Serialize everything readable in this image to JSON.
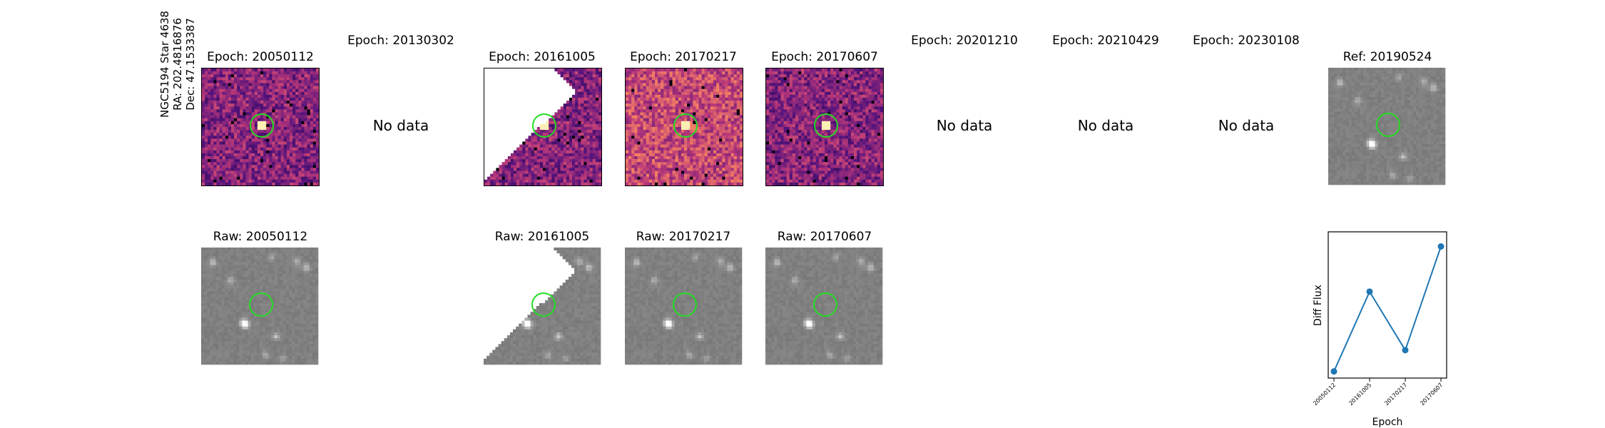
{
  "target": {
    "name": "NGC5194 Star 4638",
    "ra": "RA: 202.4816876",
    "dec": "Dec: 47.1533387"
  },
  "diff_row": [
    {
      "title": "Epoch: 20050112",
      "status": "data",
      "colormap": "magma"
    },
    {
      "title": "Epoch: 20130302",
      "status": "no-data",
      "text": "No data"
    },
    {
      "title": "Epoch: 20161005",
      "status": "data",
      "colormap": "magma"
    },
    {
      "title": "Epoch: 20170217",
      "status": "data",
      "colormap": "magma"
    },
    {
      "title": "Epoch: 20170607",
      "status": "data",
      "colormap": "magma"
    },
    {
      "title": "Epoch: 20201210",
      "status": "no-data",
      "text": "No data"
    },
    {
      "title": "Epoch: 20210429",
      "status": "no-data",
      "text": "No data"
    },
    {
      "title": "Epoch: 20230108",
      "status": "no-data",
      "text": "No data"
    },
    {
      "title": "Ref: 20190524",
      "status": "data",
      "colormap": "gray"
    }
  ],
  "raw_row": [
    {
      "title": "Raw: 20050112",
      "colormap": "gray"
    },
    {
      "title": "Raw: 20161005",
      "colormap": "gray"
    },
    {
      "title": "Raw: 20170217",
      "colormap": "gray"
    },
    {
      "title": "Raw: 20170607",
      "colormap": "gray"
    }
  ],
  "colors": {
    "aperture": "#22dd22",
    "line": "#1f77b4"
  },
  "chart_data": {
    "type": "line",
    "title": "",
    "xlabel": "Epoch",
    "ylabel": "Diff Flux",
    "categories": [
      "20050112",
      "20161005",
      "20170217",
      "20170607"
    ],
    "series": [
      {
        "values": [
          0.0,
          0.6,
          0.16,
          0.94
        ]
      }
    ],
    "ylim": [
      -0.05,
      1.05
    ],
    "y_ticks_shown": false,
    "grid": false
  }
}
